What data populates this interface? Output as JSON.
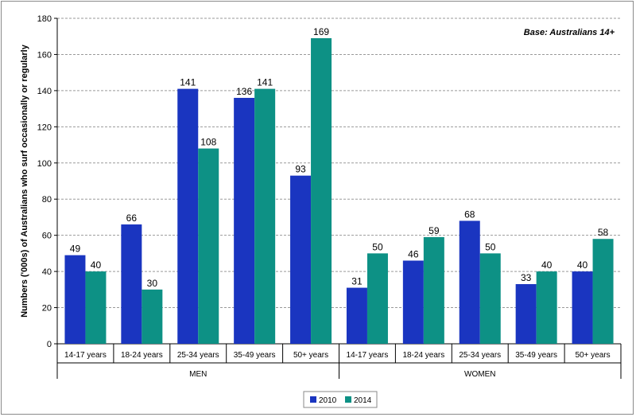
{
  "chart_data": {
    "type": "bar",
    "annotation": "Base: Australians 14+",
    "ylabel": "Numbers ('000s) of Australians who surf occasionally or regularly",
    "xlabel": "",
    "ylim": [
      0,
      180
    ],
    "yticks": [
      0,
      20,
      40,
      60,
      80,
      100,
      120,
      140,
      160,
      180
    ],
    "grid": true,
    "legend_position": "bottom",
    "groups": [
      {
        "label": "MEN",
        "categories": [
          "14-17 years",
          "18-24 years",
          "25-34 years",
          "35-49 years",
          "50+ years"
        ]
      },
      {
        "label": "WOMEN",
        "categories": [
          "14-17 years",
          "18-24 years",
          "25-34 years",
          "35-49 years",
          "50+ years"
        ]
      }
    ],
    "series": [
      {
        "name": "2010",
        "color": "#1a35c0",
        "values": [
          49,
          66,
          141,
          136,
          93,
          31,
          46,
          68,
          33,
          40
        ]
      },
      {
        "name": "2014",
        "color": "#0d9185",
        "values": [
          40,
          30,
          108,
          141,
          169,
          50,
          59,
          50,
          40,
          58
        ]
      }
    ]
  }
}
